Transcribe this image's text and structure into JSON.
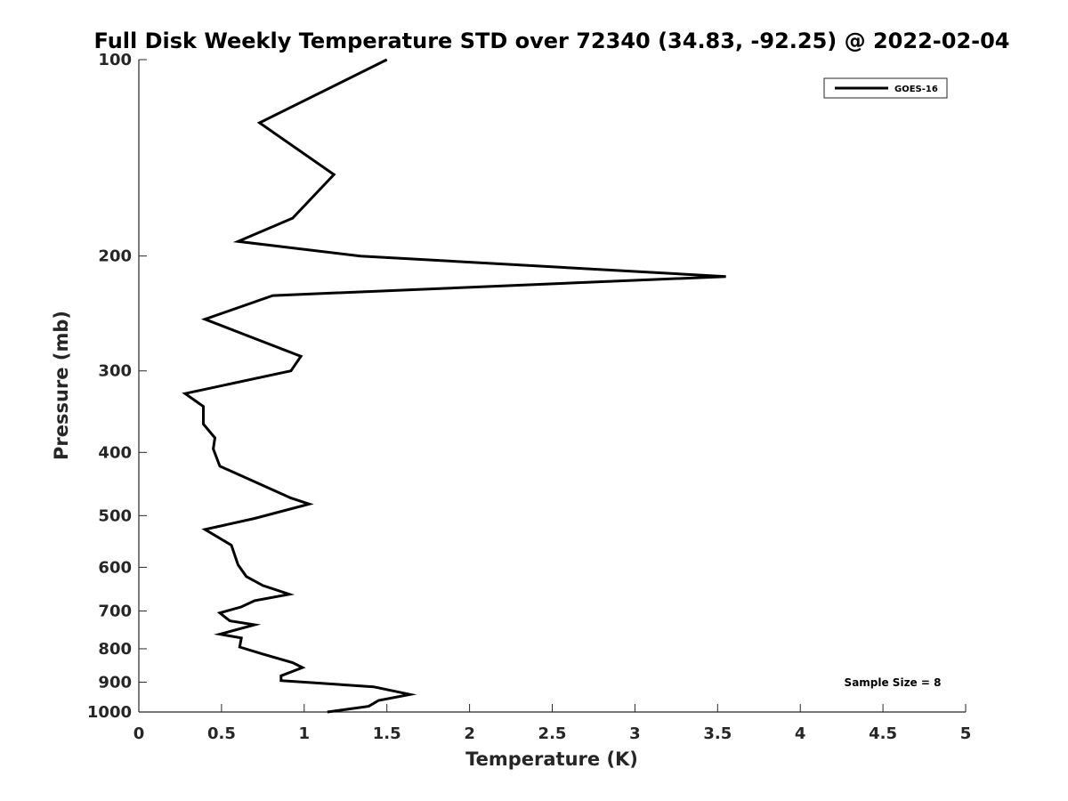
{
  "chart_data": {
    "type": "line",
    "title": "Full Disk Weekly Temperature STD over 72340 (34.83, -92.25) @ 2022-02-04",
    "xlabel": "Temperature (K)",
    "ylabel": "Pressure (mb)",
    "xlim": [
      0,
      5
    ],
    "ylim": [
      100,
      1000
    ],
    "y_scale": "log",
    "y_reversed": true,
    "x_ticks": [
      "0",
      "0.5",
      "1",
      "1.5",
      "2",
      "2.5",
      "3",
      "3.5",
      "4",
      "4.5",
      "5"
    ],
    "y_ticks": [
      "100",
      "200",
      "300",
      "400",
      "500",
      "600",
      "700",
      "800",
      "900",
      "1000"
    ],
    "grid": false,
    "legend_position": "top-right",
    "annotation": "Sample Size = 8",
    "series": [
      {
        "name": "GOES-16",
        "color": "#000000",
        "points": [
          [
            1.5,
            100
          ],
          [
            0.73,
            125
          ],
          [
            1.18,
            150
          ],
          [
            0.93,
            175
          ],
          [
            0.6,
            190
          ],
          [
            1.34,
            200
          ],
          [
            3.55,
            215
          ],
          [
            0.81,
            230
          ],
          [
            0.4,
            250
          ],
          [
            0.98,
            285
          ],
          [
            0.92,
            300
          ],
          [
            0.28,
            325
          ],
          [
            0.39,
            340
          ],
          [
            0.39,
            362
          ],
          [
            0.46,
            380
          ],
          [
            0.45,
            395
          ],
          [
            0.49,
            420
          ],
          [
            0.67,
            440
          ],
          [
            0.92,
            470
          ],
          [
            1.03,
            480
          ],
          [
            0.7,
            505
          ],
          [
            0.4,
            525
          ],
          [
            0.56,
            555
          ],
          [
            0.6,
            595
          ],
          [
            0.65,
            620
          ],
          [
            0.75,
            640
          ],
          [
            0.91,
            660
          ],
          [
            0.7,
            675
          ],
          [
            0.62,
            690
          ],
          [
            0.49,
            705
          ],
          [
            0.55,
            725
          ],
          [
            0.7,
            735
          ],
          [
            0.49,
            760
          ],
          [
            0.62,
            770
          ],
          [
            0.61,
            795
          ],
          [
            0.75,
            815
          ],
          [
            0.93,
            840
          ],
          [
            0.99,
            855
          ],
          [
            0.86,
            880
          ],
          [
            0.86,
            895
          ],
          [
            1.42,
            915
          ],
          [
            1.64,
            940
          ],
          [
            1.45,
            960
          ],
          [
            1.39,
            980
          ],
          [
            1.14,
            1000
          ]
        ]
      }
    ]
  }
}
